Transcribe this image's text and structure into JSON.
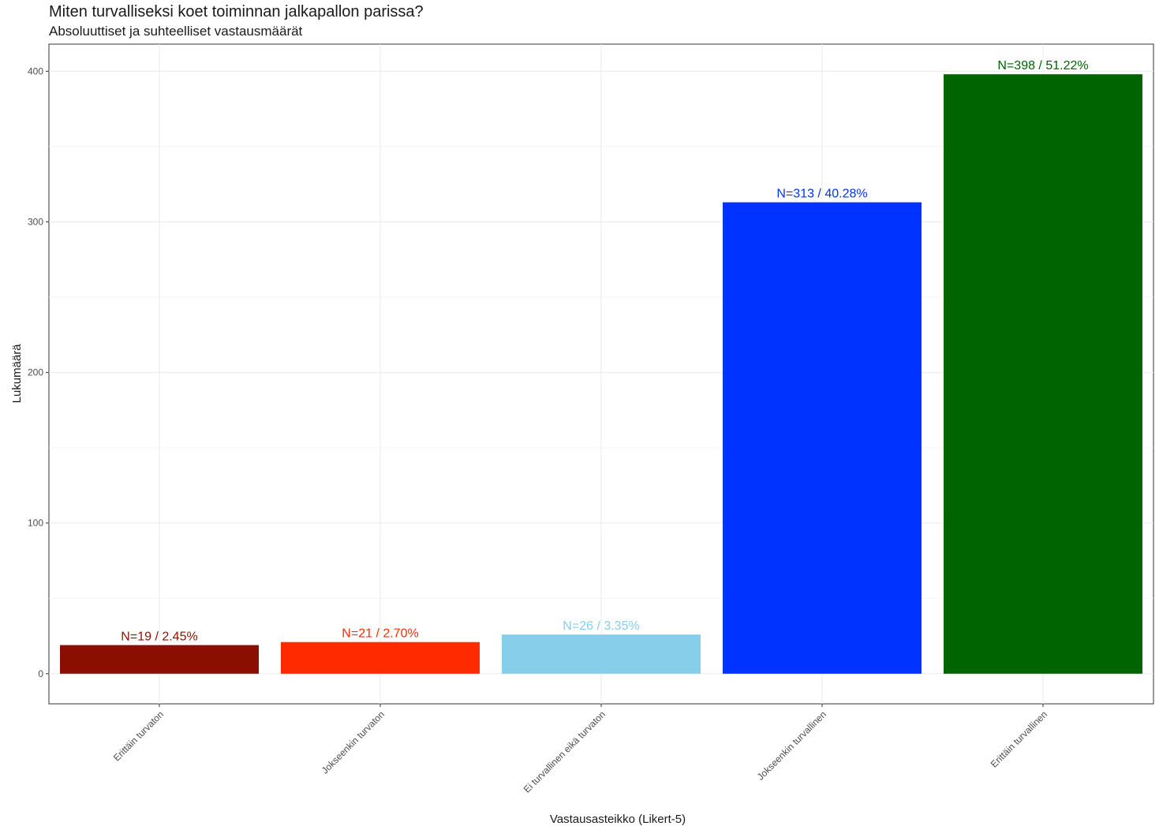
{
  "chart_data": {
    "type": "bar",
    "title": "Miten turvalliseksi koet toiminnan jalkapallon parissa?",
    "subtitle": "Absoluuttiset ja suhteelliset vastausmäärät",
    "xlabel": "Vastausasteikko (Likert-5)",
    "ylabel": "Lukumäärä",
    "categories": [
      "Erittäin turvaton",
      "Jokseenkin turvaton",
      "Ei turvallinen eikä turvaton",
      "Jokseenkin turvallinen",
      "Erittäin turvallinen"
    ],
    "values": [
      19,
      21,
      26,
      313,
      398
    ],
    "data_labels": [
      "N=19 / 2.45%",
      "N=21 / 2.70%",
      "N=26 / 3.35%",
      "N=313 / 40.28%",
      "N=398 / 51.22%"
    ],
    "colors": [
      "#8B0F00",
      "#FF2A00",
      "#87CEEB",
      "#0033FF",
      "#006400"
    ],
    "yticks": [
      0,
      100,
      200,
      300,
      400
    ],
    "ylim": [
      -20,
      418
    ],
    "grid": true,
    "legend": "none"
  }
}
